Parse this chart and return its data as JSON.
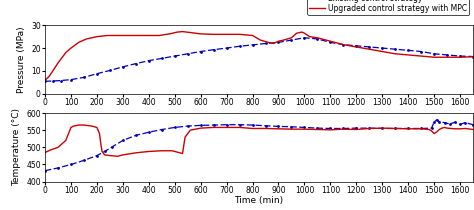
{
  "pressure_blue_x": [
    0,
    30,
    60,
    100,
    150,
    200,
    250,
    300,
    350,
    400,
    450,
    500,
    550,
    600,
    650,
    700,
    750,
    800,
    850,
    900,
    950,
    1000,
    1050,
    1100,
    1150,
    1200,
    1250,
    1300,
    1350,
    1400,
    1450,
    1500,
    1550,
    1600,
    1650
  ],
  "pressure_blue_y": [
    5.5,
    5.6,
    5.8,
    6.2,
    7.2,
    8.8,
    10.2,
    11.8,
    13.2,
    14.5,
    15.5,
    16.5,
    17.5,
    18.5,
    19.3,
    20.0,
    20.8,
    21.4,
    22.0,
    22.5,
    23.5,
    24.5,
    24.0,
    22.5,
    21.5,
    21.0,
    20.5,
    20.0,
    19.5,
    19.0,
    18.5,
    17.5,
    17.0,
    16.5,
    16.3
  ],
  "pressure_red_x": [
    0,
    15,
    30,
    50,
    80,
    100,
    130,
    160,
    200,
    240,
    280,
    320,
    360,
    400,
    440,
    480,
    510,
    530,
    560,
    600,
    650,
    700,
    750,
    800,
    830,
    860,
    880,
    900,
    920,
    950,
    970,
    990,
    1000,
    1020,
    1050,
    1100,
    1150,
    1200,
    1250,
    1300,
    1350,
    1400,
    1450,
    1500,
    1550,
    1600,
    1650
  ],
  "pressure_red_y": [
    6.0,
    7.5,
    10.0,
    13.5,
    18.0,
    20.0,
    22.5,
    24.0,
    25.0,
    25.5,
    25.5,
    25.5,
    25.5,
    25.5,
    25.5,
    26.2,
    27.0,
    27.2,
    26.8,
    26.2,
    26.0,
    26.0,
    26.0,
    25.5,
    23.5,
    22.5,
    22.0,
    23.0,
    23.5,
    24.5,
    26.5,
    27.0,
    26.5,
    25.0,
    24.5,
    23.0,
    21.5,
    20.5,
    19.5,
    18.5,
    17.5,
    17.0,
    16.5,
    16.0,
    16.0,
    16.0,
    16.2
  ],
  "temp_blue_x": [
    0,
    50,
    100,
    150,
    200,
    230,
    260,
    300,
    350,
    400,
    450,
    500,
    550,
    600,
    650,
    700,
    750,
    800,
    850,
    900,
    950,
    1000,
    1050,
    1100,
    1150,
    1200,
    1250,
    1300,
    1350,
    1400,
    1450,
    1490,
    1500,
    1510,
    1520,
    1540,
    1560,
    1580,
    1600,
    1620,
    1650
  ],
  "temp_blue_y": [
    432,
    440,
    450,
    462,
    476,
    488,
    502,
    520,
    535,
    544,
    552,
    558,
    562,
    564,
    565,
    566,
    566,
    565,
    563,
    561,
    560,
    558,
    556,
    555,
    555,
    556,
    556,
    555,
    555,
    555,
    555,
    556,
    574,
    580,
    575,
    572,
    568,
    573,
    567,
    572,
    566
  ],
  "temp_red_x": [
    0,
    20,
    50,
    80,
    100,
    110,
    130,
    150,
    180,
    200,
    210,
    215,
    220,
    230,
    250,
    280,
    300,
    350,
    400,
    450,
    490,
    500,
    510,
    520,
    530,
    540,
    560,
    600,
    650,
    700,
    750,
    800,
    850,
    900,
    950,
    1000,
    1050,
    1100,
    1150,
    1200,
    1250,
    1300,
    1350,
    1400,
    1450,
    1480,
    1490,
    1500,
    1510,
    1520,
    1530,
    1540,
    1550,
    1580,
    1600,
    1620,
    1640,
    1650
  ],
  "temp_red_y": [
    485,
    492,
    500,
    520,
    558,
    562,
    565,
    565,
    562,
    558,
    540,
    510,
    488,
    478,
    476,
    474,
    478,
    484,
    488,
    490,
    490,
    488,
    486,
    484,
    482,
    530,
    550,
    556,
    558,
    558,
    558,
    555,
    555,
    554,
    553,
    553,
    552,
    551,
    553,
    552,
    555,
    556,
    555,
    554,
    554,
    552,
    548,
    540,
    545,
    552,
    556,
    558,
    556,
    554,
    554,
    555,
    553,
    552
  ],
  "pressure_ylim": [
    0,
    30
  ],
  "pressure_yticks": [
    0,
    10,
    20,
    30
  ],
  "temp_ylim": [
    400,
    600
  ],
  "temp_yticks": [
    400,
    450,
    500,
    550,
    600
  ],
  "xlim": [
    0,
    1650
  ],
  "xticks": [
    0,
    100,
    200,
    300,
    400,
    500,
    600,
    700,
    800,
    900,
    1000,
    1100,
    1200,
    1300,
    1400,
    1500,
    1600
  ],
  "xlabel": "Time (min)",
  "ylabel_pressure": "Pressure (MPa)",
  "ylabel_temp": "Temperature (°C)",
  "legend_blue": "Existing control strategy",
  "legend_red": "Upgraded control strategy with MPC",
  "blue_color": "#0000BB",
  "red_color": "#CC0000",
  "bg_color": "#ffffff",
  "fontsize": 6.5,
  "tick_fontsize": 5.5,
  "legend_fontsize": 5.5
}
